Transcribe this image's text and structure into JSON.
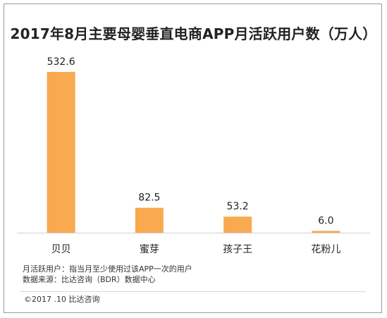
{
  "chart_data": {
    "type": "bar",
    "title": "2017年8月主要母婴垂直电商APP月活跃用户数（万人）",
    "categories": [
      "贝贝",
      "蜜芽",
      "孩子王",
      "花粉儿"
    ],
    "values": [
      532.6,
      82.5,
      53.2,
      6.0
    ],
    "value_labels": [
      "532.6",
      "82.5",
      "53.2",
      "6.0"
    ],
    "xlabel": "",
    "ylabel": "",
    "ylim": [
      0,
      532.6
    ],
    "grid": false,
    "legend": "none",
    "bar_color": "#F9A94F",
    "axis_color": "#d0d0d0"
  },
  "notes": {
    "definition": "月活跃用户：指当月至少使用过该APP一次的用户",
    "source": "数据来源：比达咨询（BDR）数据中心"
  },
  "footer": {
    "copyright": "©2017 .10   比达咨询"
  }
}
